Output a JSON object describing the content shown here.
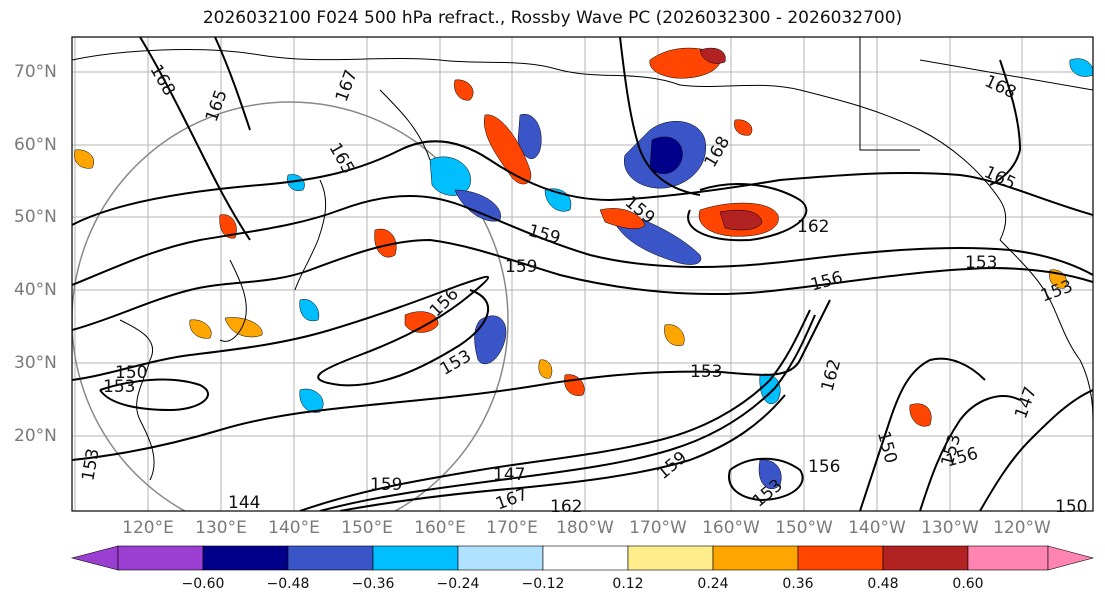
{
  "title": "2026032100 F024 500 hPa refract., Rossby Wave PC (2026032300 - 2026032700)",
  "lat_labels": [
    "70°N",
    "60°N",
    "50°N",
    "40°N",
    "30°N",
    "20°N"
  ],
  "lon_labels": [
    "120°E",
    "130°E",
    "140°E",
    "150°E",
    "160°E",
    "170°E",
    "180°W",
    "170°W",
    "160°W",
    "150°W",
    "140°W",
    "130°W",
    "120°W"
  ],
  "colorbar": {
    "ticks": [
      "−0.60",
      "−0.48",
      "−0.36",
      "−0.24",
      "−0.12",
      "0.12",
      "0.24",
      "0.36",
      "0.48",
      "0.60"
    ],
    "colors": [
      "#9a3fd1",
      "#00008b",
      "#3a55c8",
      "#00bfff",
      "#b0e2ff",
      "#ffffff",
      "#ffec8b",
      "#ffa500",
      "#ff4500",
      "#b22222",
      "#ff85b0"
    ]
  },
  "contour_labels": [
    "168",
    "165",
    "165",
    "167",
    "168",
    "168",
    "165",
    "162",
    "159",
    "159",
    "156",
    "156",
    "153",
    "153",
    "150",
    "153",
    "153",
    "156",
    "159",
    "162",
    "153",
    "147",
    "147",
    "150",
    "153",
    "156",
    "153",
    "144",
    "159",
    "167",
    "162",
    "153",
    "150",
    "159"
  ]
}
